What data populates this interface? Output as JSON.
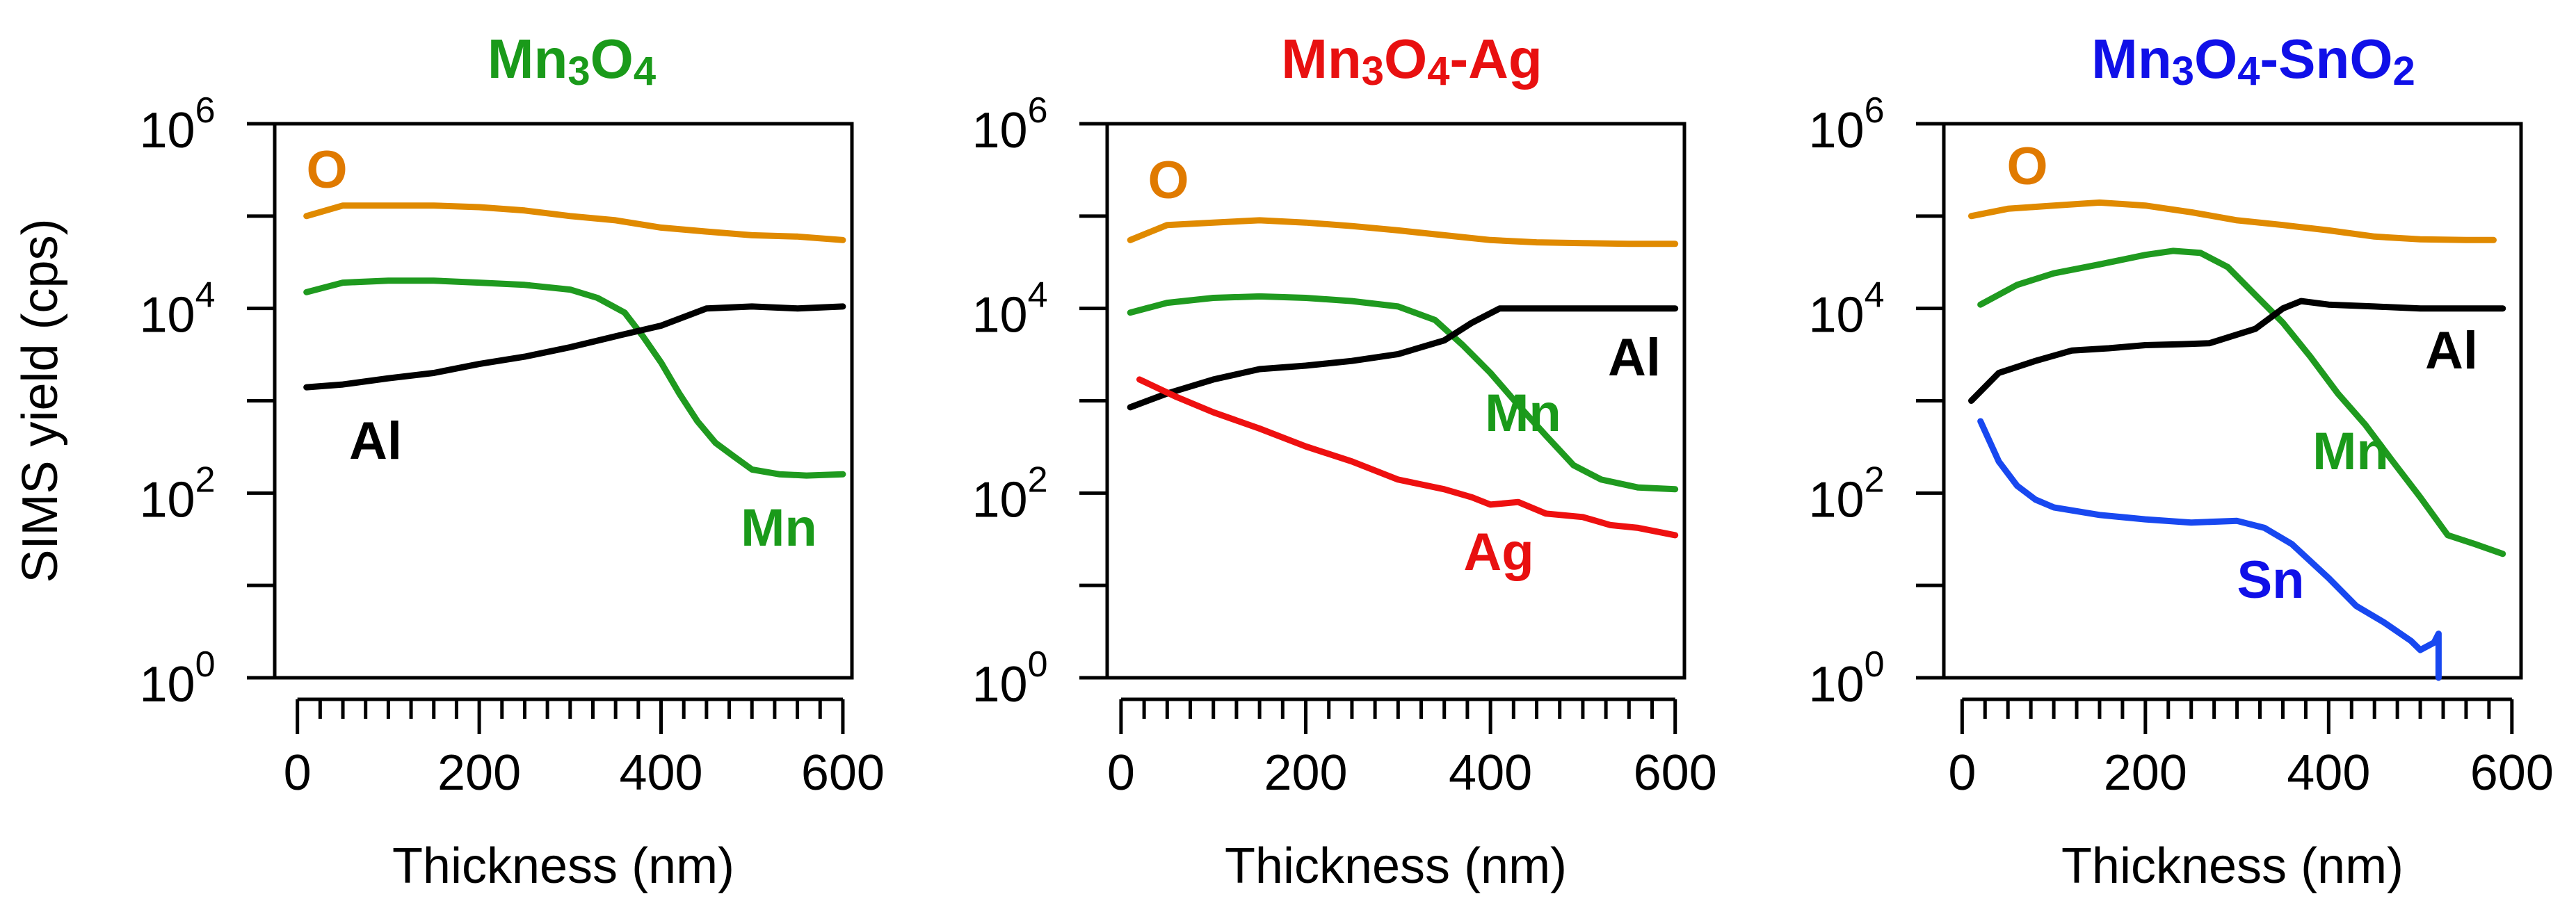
{
  "chart_data": [
    {
      "type": "line",
      "title": "Mn3O4",
      "title_parts": [
        {
          "t": "Mn"
        },
        {
          "t": "3",
          "sub": true
        },
        {
          "t": "O"
        },
        {
          "t": "4",
          "sub": true
        }
      ],
      "title_color": "#1a9a1a",
      "xlabel": "Thickness (nm)",
      "ylabel": "SIMS yield (cps)",
      "xlim": [
        -25,
        610
      ],
      "ylim_log10": [
        0,
        6
      ],
      "xticks": [
        0,
        200,
        400,
        600
      ],
      "yticks": [
        {
          "base": "10",
          "exp": "0"
        },
        {
          "base": "10",
          "exp": "2"
        },
        {
          "base": "10",
          "exp": "4"
        },
        {
          "base": "10",
          "exp": "6"
        }
      ],
      "series": [
        {
          "name": "O",
          "color": "#e08a00",
          "label": "O",
          "label_color": "#e07a00",
          "x": [
            10,
            50,
            100,
            150,
            200,
            250,
            300,
            350,
            400,
            450,
            500,
            550,
            600
          ],
          "y": [
            100000,
            130000,
            130000,
            130000,
            125000,
            115000,
            100000,
            90000,
            75000,
            68000,
            62000,
            60000,
            55000
          ]
        },
        {
          "name": "Mn",
          "color": "#1f9a1f",
          "label": "Mn",
          "label_color": "#1a9a1a",
          "x": [
            10,
            50,
            100,
            150,
            200,
            250,
            300,
            330,
            360,
            380,
            400,
            420,
            440,
            460,
            480,
            500,
            530,
            560,
            600
          ],
          "y": [
            15000,
            19000,
            20000,
            20000,
            19000,
            18000,
            16000,
            13000,
            9000,
            5000,
            2600,
            1200,
            600,
            350,
            250,
            180,
            160,
            155,
            160
          ]
        },
        {
          "name": "Al",
          "color": "#000000",
          "label": "Al",
          "label_color": "#000000",
          "x": [
            10,
            50,
            100,
            150,
            200,
            250,
            300,
            350,
            400,
            450,
            500,
            550,
            600
          ],
          "y": [
            1400,
            1500,
            1750,
            2000,
            2500,
            3000,
            3800,
            5000,
            6500,
            10000,
            10500,
            10000,
            10500
          ]
        }
      ]
    },
    {
      "type": "line",
      "title": "Mn3O4-Ag",
      "title_parts": [
        {
          "t": "Mn"
        },
        {
          "t": "3",
          "sub": true
        },
        {
          "t": "O"
        },
        {
          "t": "4",
          "sub": true
        },
        {
          "t": "-Ag"
        }
      ],
      "title_color": "#e81010",
      "xlabel": "Thickness (nm)",
      "xlim": [
        -15,
        610
      ],
      "ylim_log10": [
        0,
        6
      ],
      "xticks": [
        0,
        200,
        400,
        600
      ],
      "yticks": [
        {
          "base": "10",
          "exp": "0"
        },
        {
          "base": "10",
          "exp": "2"
        },
        {
          "base": "10",
          "exp": "4"
        },
        {
          "base": "10",
          "exp": "6"
        }
      ],
      "series": [
        {
          "name": "O",
          "color": "#e08a00",
          "label": "O",
          "label_color": "#e07a00",
          "x": [
            10,
            50,
            100,
            150,
            200,
            250,
            300,
            350,
            400,
            450,
            500,
            550,
            600
          ],
          "y": [
            55000,
            80000,
            85000,
            90000,
            85000,
            78000,
            70000,
            62000,
            55000,
            52000,
            51000,
            50000,
            50000
          ]
        },
        {
          "name": "Mn",
          "color": "#1f9a1f",
          "label": "Mn",
          "label_color": "#1a9a1a",
          "x": [
            10,
            50,
            100,
            150,
            200,
            250,
            300,
            340,
            370,
            400,
            430,
            460,
            490,
            520,
            560,
            600
          ],
          "y": [
            9000,
            11500,
            13000,
            13500,
            13000,
            12000,
            10500,
            7500,
            4000,
            2000,
            900,
            420,
            200,
            140,
            115,
            110
          ]
        },
        {
          "name": "Al",
          "color": "#000000",
          "label": "Al",
          "label_color": "#000000",
          "x": [
            10,
            50,
            100,
            150,
            200,
            250,
            300,
            350,
            380,
            410,
            450,
            500,
            550,
            600
          ],
          "y": [
            850,
            1200,
            1700,
            2200,
            2400,
            2700,
            3200,
            4500,
            7000,
            10000,
            10000,
            10000,
            10000,
            10000
          ]
        },
        {
          "name": "Ag",
          "color": "#ee1010",
          "label": "Ag",
          "label_color": "#e81010",
          "x": [
            20,
            60,
            100,
            150,
            200,
            250,
            300,
            350,
            380,
            400,
            430,
            460,
            500,
            530,
            560,
            600
          ],
          "y": [
            1700,
            1100,
            750,
            500,
            320,
            220,
            140,
            110,
            90,
            75,
            80,
            60,
            55,
            45,
            42,
            35
          ]
        }
      ]
    },
    {
      "type": "line",
      "title": "Mn3O4-SnO2",
      "title_parts": [
        {
          "t": "Mn"
        },
        {
          "t": "3",
          "sub": true
        },
        {
          "t": "O"
        },
        {
          "t": "4",
          "sub": true
        },
        {
          "t": "-SnO"
        },
        {
          "t": "2",
          "sub": true
        }
      ],
      "title_color": "#1010e8",
      "xlabel": "Thickness (nm)",
      "xlim": [
        -20,
        610
      ],
      "ylim_log10": [
        0,
        6
      ],
      "xticks": [
        0,
        200,
        400,
        600
      ],
      "yticks": [
        {
          "base": "10",
          "exp": "0"
        },
        {
          "base": "10",
          "exp": "2"
        },
        {
          "base": "10",
          "exp": "4"
        },
        {
          "base": "10",
          "exp": "6"
        }
      ],
      "series": [
        {
          "name": "O",
          "color": "#e08a00",
          "label": "O",
          "label_color": "#e07a00",
          "x": [
            10,
            50,
            100,
            150,
            200,
            250,
            300,
            350,
            400,
            450,
            500,
            550,
            580
          ],
          "y": [
            100000,
            120000,
            130000,
            140000,
            130000,
            110000,
            90000,
            80000,
            70000,
            60000,
            56000,
            55000,
            55000
          ]
        },
        {
          "name": "Mn",
          "color": "#1f9a1f",
          "label": "Mn",
          "label_color": "#1a9a1a",
          "x": [
            20,
            60,
            100,
            150,
            200,
            230,
            260,
            290,
            320,
            350,
            380,
            410,
            440,
            470,
            500,
            530,
            560,
            590
          ],
          "y": [
            11000,
            18000,
            24000,
            30000,
            38000,
            42000,
            40000,
            28000,
            14000,
            7000,
            3000,
            1200,
            550,
            220,
            90,
            35,
            28,
            22
          ]
        },
        {
          "name": "Al",
          "color": "#000000",
          "label": "Al",
          "label_color": "#000000",
          "x": [
            10,
            40,
            80,
            120,
            160,
            200,
            240,
            270,
            320,
            350,
            370,
            400,
            450,
            500,
            550,
            590
          ],
          "y": [
            1000,
            2000,
            2700,
            3500,
            3700,
            4000,
            4100,
            4200,
            6000,
            10000,
            12000,
            11000,
            10500,
            10000,
            10000,
            10000
          ]
        },
        {
          "name": "Sn",
          "color": "#1848f0",
          "label": "Sn",
          "label_color": "#1010e8",
          "x": [
            20,
            40,
            60,
            80,
            100,
            150,
            200,
            250,
            300,
            330,
            360,
            400,
            430,
            460,
            490,
            500,
            515,
            520,
            520
          ],
          "y": [
            600,
            220,
            120,
            85,
            70,
            58,
            52,
            48,
            50,
            42,
            28,
            12,
            6,
            4,
            2.5,
            2,
            2.4,
            3,
            1
          ]
        }
      ]
    }
  ]
}
